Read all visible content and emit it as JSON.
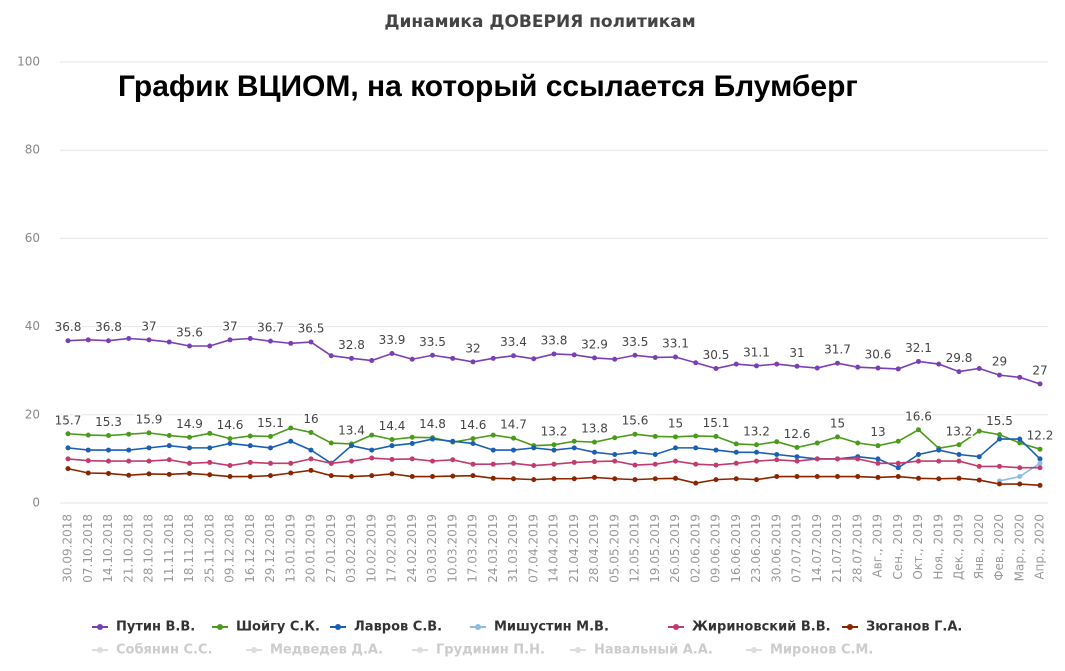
{
  "chart_data": {
    "type": "line",
    "title": "Динамика ДОВЕРИЯ политикам",
    "annotation": "График ВЦИОМ, на который ссылается Блумберг",
    "categories": [
      "30.09.2018",
      "07.10.2018",
      "14.10.2018",
      "21.10.2018",
      "28.10.2018",
      "11.11.2018",
      "18.11.2018",
      "25.11.2018",
      "09.12.2018",
      "16.12.2018",
      "29.12.2018",
      "13.01.2019",
      "20.01.2019",
      "27.01.2019",
      "03.02.2019",
      "10.02.2019",
      "17.02.2019",
      "24.02.2019",
      "03.03.2019",
      "10.03.2019",
      "17.03.2019",
      "24.03.2019",
      "31.03.2019",
      "07.04.2019",
      "14.04.2019",
      "21.04.2019",
      "28.04.2019",
      "05.05.2019",
      "12.05.2019",
      "19.05.2019",
      "26.05.2019",
      "02.06.2019",
      "09.06.2019",
      "16.06.2019",
      "23.06.2019",
      "30.06.2019",
      "07.07.2019",
      "14.07.2019",
      "21.07.2019",
      "28.07.2019",
      "Авг., 2019",
      "Сен., 2019",
      "Окт., 2019",
      "Ноя., 2019",
      "Дек., 2019",
      "Янв., 2020",
      "Фев., 2020",
      "Мар., 2020",
      "Апр., 2020"
    ],
    "series": [
      {
        "name": "Путин В.В.",
        "color": "#7b3fb5",
        "values": [
          36.8,
          37,
          36.8,
          37.3,
          37,
          36.5,
          35.6,
          35.6,
          37,
          37.3,
          36.7,
          36.2,
          36.5,
          33.4,
          32.8,
          32.3,
          33.9,
          32.6,
          33.5,
          32.8,
          32,
          32.8,
          33.4,
          32.7,
          33.8,
          33.6,
          32.9,
          32.6,
          33.5,
          33,
          33.1,
          31.8,
          30.5,
          31.5,
          31.1,
          31.5,
          31,
          30.6,
          31.7,
          30.8,
          30.6,
          30.4,
          32.1,
          31.5,
          29.8,
          30.5,
          29,
          28.5,
          27
        ]
      },
      {
        "name": "Шойгу С.К.",
        "color": "#4a9b1a",
        "values": [
          15.7,
          15.4,
          15.3,
          15.6,
          15.9,
          15.3,
          14.9,
          15.8,
          14.6,
          15.2,
          15.1,
          17,
          16,
          13.6,
          13.4,
          15.4,
          14.4,
          14.9,
          14.8,
          13.8,
          14.6,
          15.4,
          14.7,
          13,
          13.2,
          14,
          13.8,
          14.8,
          15.6,
          15.1,
          15,
          15.2,
          15.1,
          13.4,
          13.2,
          13.9,
          12.6,
          13.6,
          15,
          13.6,
          13,
          14,
          16.6,
          12.4,
          13.2,
          16.3,
          15.5,
          13.6,
          12.2
        ]
      },
      {
        "name": "Лавров С.В.",
        "color": "#1a5fb4",
        "values": [
          12.5,
          12,
          12,
          12,
          12.5,
          13,
          12.5,
          12.5,
          13.5,
          13,
          12.5,
          14,
          12,
          9,
          13,
          12,
          13,
          13.5,
          14.5,
          14,
          13.5,
          12,
          12,
          12.5,
          12,
          12.5,
          11.5,
          11,
          11.5,
          11,
          12.5,
          12.5,
          12,
          11.5,
          11.5,
          11,
          10.5,
          10,
          10,
          10.5,
          10,
          8,
          11,
          12,
          11,
          10.5,
          14.5,
          14.5,
          10
        ]
      },
      {
        "name": "Мишустин М.В.",
        "color": "#8dbde6",
        "values": [
          null,
          null,
          null,
          null,
          null,
          null,
          null,
          null,
          null,
          null,
          null,
          null,
          null,
          null,
          null,
          null,
          null,
          null,
          null,
          null,
          null,
          null,
          null,
          null,
          null,
          null,
          null,
          null,
          null,
          null,
          null,
          null,
          null,
          null,
          null,
          null,
          null,
          null,
          null,
          null,
          null,
          null,
          null,
          null,
          null,
          null,
          5,
          6,
          9
        ]
      },
      {
        "name": "Жириновский В.В.",
        "color": "#c23b6e",
        "values": [
          10,
          9.6,
          9.5,
          9.5,
          9.5,
          9.8,
          9,
          9.2,
          8.5,
          9.2,
          9,
          9,
          10,
          9,
          9.5,
          10.2,
          9.9,
          10,
          9.5,
          9.8,
          8.8,
          8.8,
          9,
          8.5,
          8.8,
          9.2,
          9.4,
          9.5,
          8.6,
          8.8,
          9.5,
          8.8,
          8.6,
          9,
          9.5,
          9.8,
          9.5,
          10,
          10,
          10,
          9,
          9,
          9.5,
          9.5,
          9.5,
          8.3,
          8.3,
          8,
          8
        ]
      },
      {
        "name": "Зюганов Г.А.",
        "color": "#8b2500",
        "values": [
          7.8,
          6.8,
          6.7,
          6.3,
          6.6,
          6.5,
          6.7,
          6.4,
          6,
          6,
          6.2,
          6.8,
          7.4,
          6.2,
          6,
          6.2,
          6.6,
          6,
          6,
          6.1,
          6.2,
          5.6,
          5.5,
          5.3,
          5.5,
          5.5,
          5.8,
          5.5,
          5.3,
          5.5,
          5.6,
          4.5,
          5.3,
          5.5,
          5.3,
          6,
          6,
          6,
          6,
          6,
          5.8,
          6,
          5.6,
          5.5,
          5.6,
          5.2,
          4.3,
          4.3,
          4
        ]
      }
    ],
    "inactive_legend": [
      "Собянин С.С.",
      "Медведев Д.А.",
      "Грудинин П.Н.",
      "Навальный А.А.",
      "Миронов С.М."
    ],
    "ylim": [
      0,
      100
    ],
    "yticks": [
      0,
      20,
      40,
      60,
      80,
      100
    ],
    "grid": true
  }
}
